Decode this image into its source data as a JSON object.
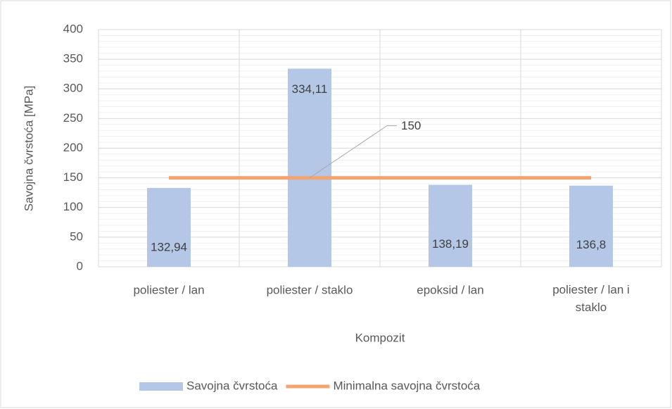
{
  "chart_data": {
    "type": "bar_line",
    "x_label": "Kompozit",
    "y_label": "Savojna čvrstoća [MPa]",
    "categories": [
      "poliester / lan",
      "poliester / staklo",
      "epoksid / lan",
      "poliester / lan i staklo"
    ],
    "series": [
      {
        "name": "Savojna čvrstoća",
        "type": "bar",
        "color": "#b4c7e7",
        "values": [
          132.94,
          334.11,
          138.19,
          136.8
        ],
        "value_labels": [
          "132,94",
          "334,11",
          "138,19",
          "136,8"
        ]
      },
      {
        "name": "Minimalna savojna čvrstoća",
        "type": "line",
        "color": "#f4a470",
        "values": [
          150,
          150,
          150,
          150
        ],
        "value_labels": [
          null,
          "150",
          null,
          null
        ]
      }
    ],
    "ylim": [
      0,
      400
    ],
    "yticks": [
      0,
      50,
      100,
      150,
      200,
      250,
      300,
      350,
      400
    ],
    "grid": true,
    "minor_ystep": 10,
    "legend": "bottom"
  }
}
